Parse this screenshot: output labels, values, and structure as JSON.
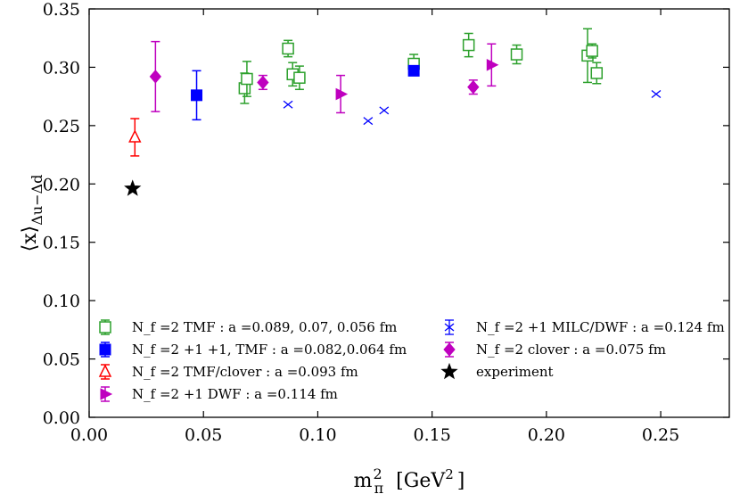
{
  "chart_data": {
    "type": "scatter",
    "title": "",
    "xlabel": "m_π^2 [GeV^2]",
    "ylabel": "⟨x⟩_{Δu−Δd}",
    "xlim": [
      0.0,
      0.28
    ],
    "ylim": [
      0.0,
      0.35
    ],
    "xticks": [
      "0.00",
      "0.05",
      "0.10",
      "0.15",
      "0.20",
      "0.25"
    ],
    "yticks": [
      "0.00",
      "0.05",
      "0.10",
      "0.15",
      "0.20",
      "0.25",
      "0.30",
      "0.35"
    ],
    "legend_position": "bottom",
    "series": [
      {
        "name": "Nf=2 TMF",
        "label": "N_f =2 TMF : a =0.089, 0.07, 0.056 fm",
        "color": "#2ca02c",
        "marker": "open-square",
        "points": [
          {
            "x": 0.068,
            "y": 0.282,
            "err": 0.013
          },
          {
            "x": 0.069,
            "y": 0.29,
            "err": 0.015
          },
          {
            "x": 0.087,
            "y": 0.316,
            "err": 0.007
          },
          {
            "x": 0.089,
            "y": 0.294,
            "err": 0.01
          },
          {
            "x": 0.092,
            "y": 0.291,
            "err": 0.01
          },
          {
            "x": 0.142,
            "y": 0.303,
            "err": 0.008
          },
          {
            "x": 0.166,
            "y": 0.319,
            "err": 0.01
          },
          {
            "x": 0.187,
            "y": 0.311,
            "err": 0.008
          },
          {
            "x": 0.218,
            "y": 0.31,
            "err": 0.023
          },
          {
            "x": 0.22,
            "y": 0.314,
            "err": 0.006
          },
          {
            "x": 0.222,
            "y": 0.295,
            "err": 0.009
          }
        ]
      },
      {
        "name": "Nf=2+1+1 TMF",
        "label": "N_f =2 +1 +1, TMF : a =0.082,0.064 fm",
        "color": "#0000ff",
        "marker": "filled-square",
        "points": [
          {
            "x": 0.047,
            "y": 0.276,
            "err": 0.021
          },
          {
            "x": 0.142,
            "y": 0.297,
            "err": 0.002
          }
        ]
      },
      {
        "name": "Nf=2 TMF/clover",
        "label": "N_f =2 TMF/clover : a =0.093 fm",
        "color": "#ff0000",
        "marker": "open-triangle",
        "points": [
          {
            "x": 0.02,
            "y": 0.24,
            "err": 0.016
          }
        ]
      },
      {
        "name": "Nf=2+1 DWF",
        "label": "N_f =2 +1 DWF : a =0.114 fm",
        "color": "#bf00bf",
        "marker": "filled-triangle-right",
        "points": [
          {
            "x": 0.11,
            "y": 0.277,
            "err": 0.016
          },
          {
            "x": 0.176,
            "y": 0.302,
            "err": 0.018
          }
        ]
      },
      {
        "name": "Nf=2+1 MILC/DWF",
        "label": "N_f =2 +1 MILC/DWF : a =0.124 fm",
        "color": "#0000ff",
        "marker": "x",
        "points": [
          {
            "x": 0.087,
            "y": 0.268,
            "err": 0.0
          },
          {
            "x": 0.122,
            "y": 0.254,
            "err": 0.0
          },
          {
            "x": 0.129,
            "y": 0.263,
            "err": 0.0
          },
          {
            "x": 0.248,
            "y": 0.277,
            "err": 0.0
          }
        ]
      },
      {
        "name": "Nf=2 clover",
        "label": "N_f =2 clover : a =0.075 fm",
        "color": "#bf00bf",
        "marker": "filled-diamond",
        "points": [
          {
            "x": 0.029,
            "y": 0.292,
            "err": 0.03
          },
          {
            "x": 0.076,
            "y": 0.287,
            "err": 0.006
          },
          {
            "x": 0.168,
            "y": 0.283,
            "err": 0.006
          }
        ]
      },
      {
        "name": "experiment",
        "label": "experiment",
        "color": "#000000",
        "marker": "star",
        "points": [
          {
            "x": 0.019,
            "y": 0.196,
            "err": 0.0
          }
        ]
      }
    ]
  },
  "colors": {
    "background": "#ffffff",
    "axis": "#000000"
  }
}
